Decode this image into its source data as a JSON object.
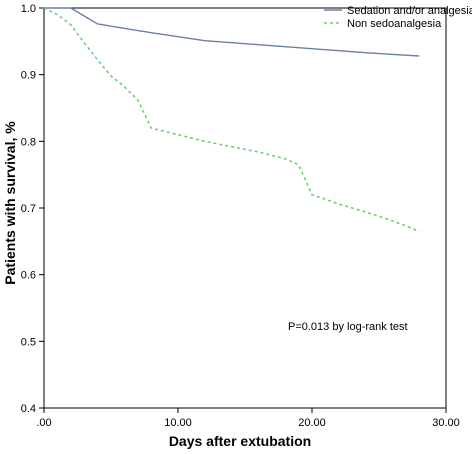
{
  "chart_data": {
    "type": "line",
    "title": "",
    "xlabel": "Days after extubation",
    "ylabel": "Patients with survival, %",
    "xlim": [
      0,
      30
    ],
    "ylim": [
      0.4,
      1.0
    ],
    "x_ticks": [
      0,
      10,
      20,
      30
    ],
    "x_tick_labels": [
      ".00",
      "10.00",
      "20.00",
      "30.00"
    ],
    "y_ticks": [
      0.4,
      0.5,
      0.6,
      0.7,
      0.8,
      0.9,
      1.0
    ],
    "y_tick_labels": [
      "0.4",
      "0.5",
      "0.6",
      "0.7",
      "0.8",
      "0.9",
      "1.0"
    ],
    "grid": false,
    "legend_position": "top-right",
    "annotation": "P=0.013 by log-rank test",
    "series": [
      {
        "name": "Sedation and/or analgesia",
        "color": "#6b7fa8",
        "style": "solid",
        "points": [
          [
            0,
            1.0
          ],
          [
            2,
            1.0
          ],
          [
            4,
            0.976
          ],
          [
            8,
            0.963
          ],
          [
            12,
            0.951
          ],
          [
            16,
            0.945
          ],
          [
            20,
            0.939
          ],
          [
            24,
            0.933
          ],
          [
            28,
            0.928
          ]
        ]
      },
      {
        "name": "Non sedoanalgesia",
        "color": "#6fcf6f",
        "style": "dashed",
        "points": [
          [
            0,
            1.0
          ],
          [
            1,
            0.99
          ],
          [
            2,
            0.975
          ],
          [
            3,
            0.948
          ],
          [
            4,
            0.922
          ],
          [
            5,
            0.898
          ],
          [
            6,
            0.882
          ],
          [
            7,
            0.862
          ],
          [
            8,
            0.82
          ],
          [
            10,
            0.81
          ],
          [
            12,
            0.8
          ],
          [
            14,
            0.792
          ],
          [
            16,
            0.784
          ],
          [
            18,
            0.774
          ],
          [
            19,
            0.765
          ],
          [
            20,
            0.72
          ],
          [
            22,
            0.706
          ],
          [
            24,
            0.694
          ],
          [
            26,
            0.681
          ],
          [
            28,
            0.665
          ]
        ]
      }
    ]
  }
}
